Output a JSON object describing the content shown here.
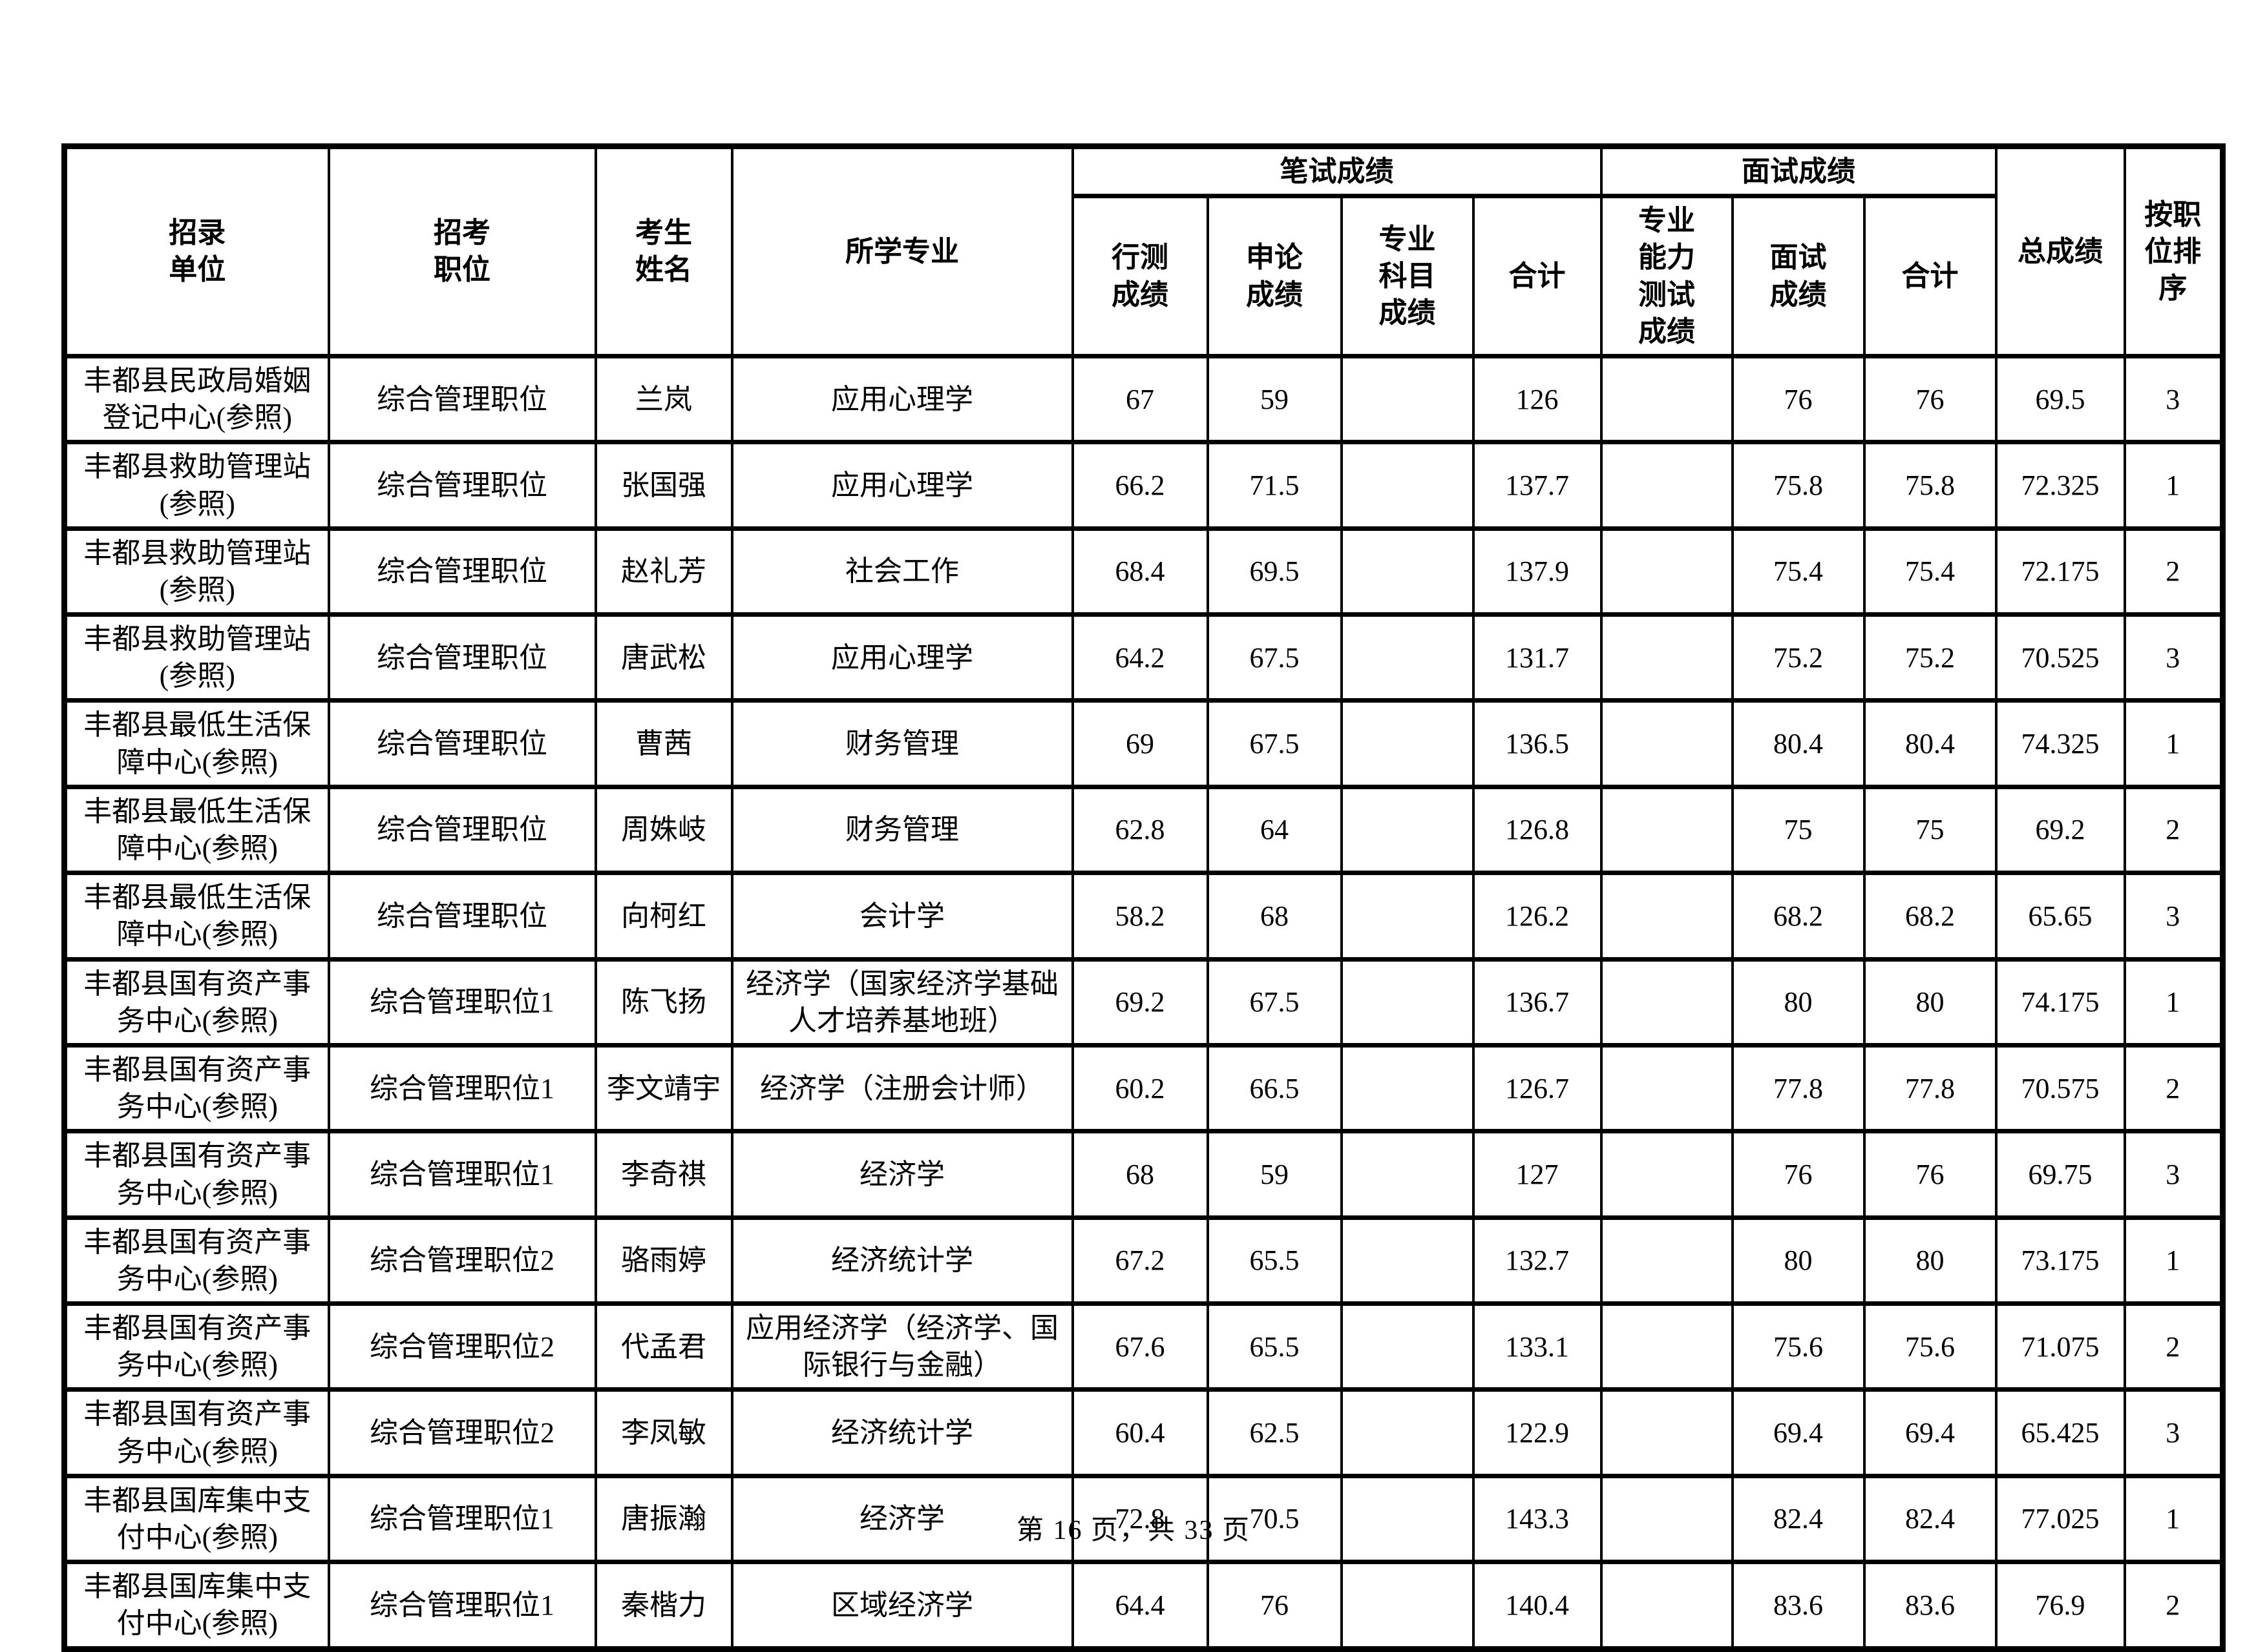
{
  "page": {
    "footer": "第 16 页，共 33 页"
  },
  "table": {
    "headers": {
      "unit": "招录\n单位",
      "position": "招考\n职位",
      "name": "考生\n姓名",
      "major": "所学专业",
      "written_group": "笔试成绩",
      "xingce": "行测\n成绩",
      "shenlun": "申论\n成绩",
      "subject": "专业\n科目\n成绩",
      "written_total": "合计",
      "interview_group": "面试成绩",
      "ability": "专业\n能力\n测试\n成绩",
      "interview": "面试\n成绩",
      "interview_total": "合计",
      "overall": "总成绩",
      "rank": "按职\n位排\n序"
    },
    "row_keys": [
      "unit",
      "position",
      "name",
      "major",
      "xingce",
      "shenlun",
      "subject",
      "written_total",
      "ability",
      "interview",
      "interview_total",
      "overall",
      "rank"
    ],
    "rows": [
      [
        "丰都县民政局婚姻登记中心(参照)",
        "综合管理职位",
        "兰岚",
        "应用心理学",
        "67",
        "59",
        "",
        "126",
        "",
        "76",
        "76",
        "69.5",
        "3"
      ],
      [
        "丰都县救助管理站(参照)",
        "综合管理职位",
        "张国强",
        "应用心理学",
        "66.2",
        "71.5",
        "",
        "137.7",
        "",
        "75.8",
        "75.8",
        "72.325",
        "1"
      ],
      [
        "丰都县救助管理站(参照)",
        "综合管理职位",
        "赵礼芳",
        "社会工作",
        "68.4",
        "69.5",
        "",
        "137.9",
        "",
        "75.4",
        "75.4",
        "72.175",
        "2"
      ],
      [
        "丰都县救助管理站(参照)",
        "综合管理职位",
        "唐武松",
        "应用心理学",
        "64.2",
        "67.5",
        "",
        "131.7",
        "",
        "75.2",
        "75.2",
        "70.525",
        "3"
      ],
      [
        "丰都县最低生活保障中心(参照)",
        "综合管理职位",
        "曹茜",
        "财务管理",
        "69",
        "67.5",
        "",
        "136.5",
        "",
        "80.4",
        "80.4",
        "74.325",
        "1"
      ],
      [
        "丰都县最低生活保障中心(参照)",
        "综合管理职位",
        "周姝岐",
        "财务管理",
        "62.8",
        "64",
        "",
        "126.8",
        "",
        "75",
        "75",
        "69.2",
        "2"
      ],
      [
        "丰都县最低生活保障中心(参照)",
        "综合管理职位",
        "向柯红",
        "会计学",
        "58.2",
        "68",
        "",
        "126.2",
        "",
        "68.2",
        "68.2",
        "65.65",
        "3"
      ],
      [
        "丰都县国有资产事务中心(参照)",
        "综合管理职位1",
        "陈飞扬",
        "经济学（国家经济学基础人才培养基地班）",
        "69.2",
        "67.5",
        "",
        "136.7",
        "",
        "80",
        "80",
        "74.175",
        "1"
      ],
      [
        "丰都县国有资产事务中心(参照)",
        "综合管理职位1",
        "李文靖宇",
        "经济学（注册会计师）",
        "60.2",
        "66.5",
        "",
        "126.7",
        "",
        "77.8",
        "77.8",
        "70.575",
        "2"
      ],
      [
        "丰都县国有资产事务中心(参照)",
        "综合管理职位1",
        "李奇祺",
        "经济学",
        "68",
        "59",
        "",
        "127",
        "",
        "76",
        "76",
        "69.75",
        "3"
      ],
      [
        "丰都县国有资产事务中心(参照)",
        "综合管理职位2",
        "骆雨婷",
        "经济统计学",
        "67.2",
        "65.5",
        "",
        "132.7",
        "",
        "80",
        "80",
        "73.175",
        "1"
      ],
      [
        "丰都县国有资产事务中心(参照)",
        "综合管理职位2",
        "代孟君",
        "应用经济学（经济学、国际银行与金融）",
        "67.6",
        "65.5",
        "",
        "133.1",
        "",
        "75.6",
        "75.6",
        "71.075",
        "2"
      ],
      [
        "丰都县国有资产事务中心(参照)",
        "综合管理职位2",
        "李凤敏",
        "经济统计学",
        "60.4",
        "62.5",
        "",
        "122.9",
        "",
        "69.4",
        "69.4",
        "65.425",
        "3"
      ],
      [
        "丰都县国库集中支付中心(参照)",
        "综合管理职位1",
        "唐振瀚",
        "经济学",
        "72.8",
        "70.5",
        "",
        "143.3",
        "",
        "82.4",
        "82.4",
        "77.025",
        "1"
      ],
      [
        "丰都县国库集中支付中心(参照)",
        "综合管理职位1",
        "秦楷力",
        "区域经济学",
        "64.4",
        "76",
        "",
        "140.4",
        "",
        "83.6",
        "83.6",
        "76.9",
        "2"
      ]
    ]
  }
}
